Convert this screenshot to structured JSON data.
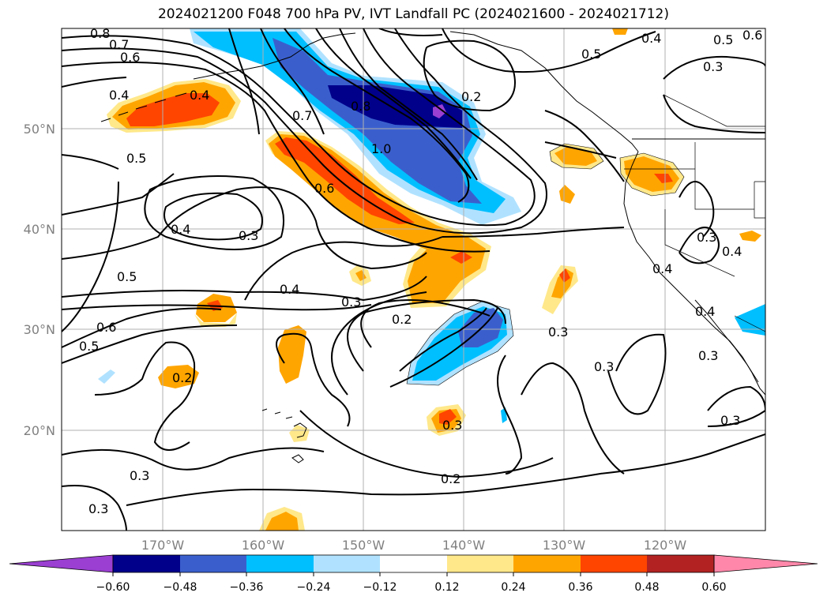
{
  "title": "2024021200 F048 700 hPa PV, IVT Landfall PC (2024021600 - 2024021712)",
  "lon_ticks": [
    "170°W",
    "160°W",
    "150°W",
    "140°W",
    "130°W",
    "120°W"
  ],
  "lat_ticks": [
    "50°N",
    "40°N",
    "30°N",
    "20°N"
  ],
  "contour_labels": [
    "0.8",
    "0.7",
    "0.6",
    "0.4",
    "0.4",
    "0.5",
    "0.8",
    "0.7",
    "1.0",
    "0.6",
    "0.2",
    "0.5",
    "0.5",
    "0.6",
    "0.4",
    "0.3",
    "0.4",
    "0.3",
    "0.5",
    "0.4",
    "0.3",
    "0.6",
    "0.5",
    "0.2",
    "0.2",
    "0.3",
    "0.3",
    "0.3",
    "0.3",
    "0.3",
    "0.4",
    "0.4",
    "0.3",
    "0.4",
    "0.3",
    "0.2",
    "0.3"
  ],
  "colorbar": {
    "ticks": [
      "−0.60",
      "−0.48",
      "−0.36",
      "−0.24",
      "−0.12",
      "0.12",
      "0.24",
      "0.36",
      "0.48",
      "0.60"
    ],
    "colors": [
      "#9a3fd1",
      "#00008b",
      "#3a5fcd",
      "#00bfff",
      "#b0e2ff",
      "#ffffff",
      "#ffe88a",
      "#ffa500",
      "#ff4500",
      "#b22222",
      "#ff88aa"
    ]
  },
  "fill_colors": {
    "purple": "#9a3fd1",
    "navy": "#00008b",
    "blue": "#3a5fcd",
    "cyan": "#00bfff",
    "lightblue": "#b0e2ff",
    "yellow": "#ffe88a",
    "orange": "#ffa500",
    "red": "#ff4500"
  }
}
